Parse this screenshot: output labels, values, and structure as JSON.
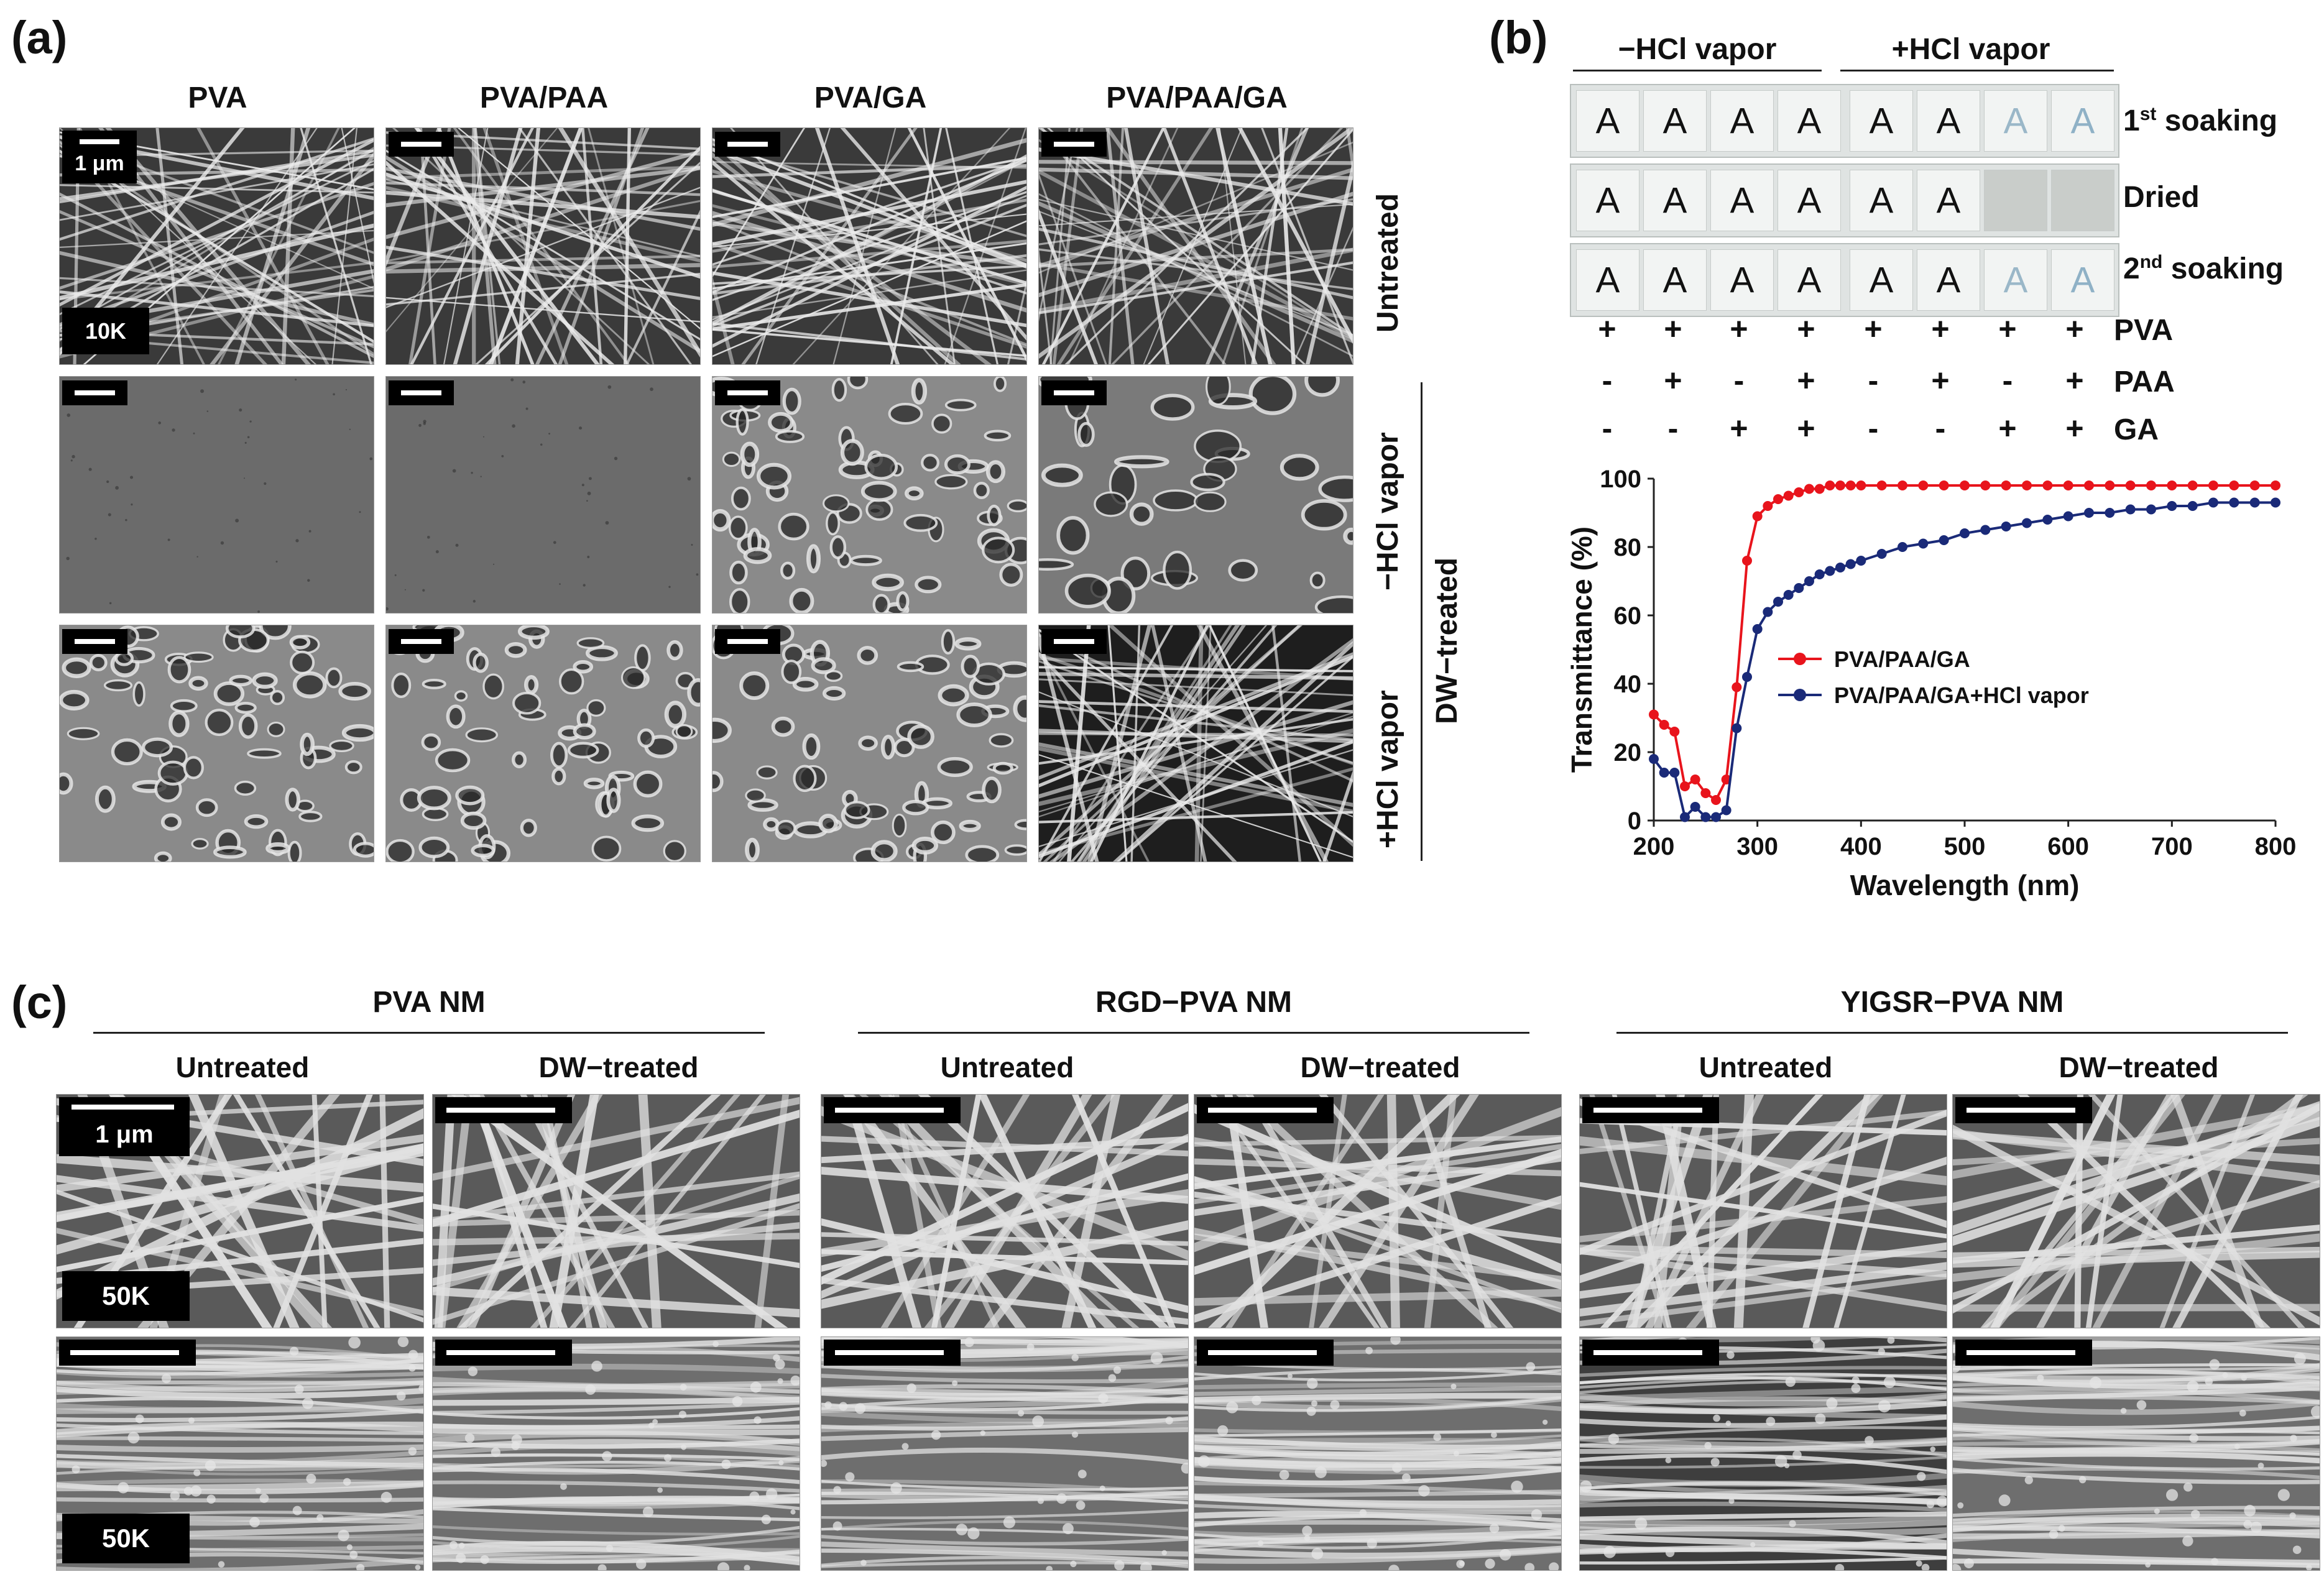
{
  "panels": {
    "a": "(a)",
    "b": "(b)",
    "c": "(c)"
  },
  "panel_a": {
    "columns": [
      "PVA",
      "PVA/PAA",
      "PVA/GA",
      "PVA/PAA/GA"
    ],
    "rows": {
      "untreated": "Untreated",
      "minus_hcl": "−HCl vapor",
      "plus_hcl": "+HCl vapor"
    },
    "group_label": "DW−treated",
    "scale_label": "1 μm",
    "mag_label": "10K"
  },
  "panel_b": {
    "headers": {
      "minus": "−HCl vapor",
      "plus": "+HCl vapor"
    },
    "rows": [
      "1st soaking",
      "Dried",
      "2nd soaking"
    ],
    "row_sup": [
      "st",
      "",
      "nd"
    ],
    "row_base": [
      "1",
      "Dried",
      "2"
    ],
    "row_tail": [
      " soaking",
      "",
      " soaking"
    ],
    "letter": "A",
    "table": [
      {
        "name": "PVA",
        "marks": [
          "+",
          "+",
          "+",
          "+",
          "+",
          "+",
          "+",
          "+"
        ]
      },
      {
        "name": "PAA",
        "marks": [
          "-",
          "+",
          "-",
          "+",
          "-",
          "+",
          "-",
          "+"
        ]
      },
      {
        "name": "GA",
        "marks": [
          "-",
          "-",
          "+",
          "+",
          "-",
          "-",
          "+",
          "+"
        ]
      }
    ]
  },
  "chart_data": {
    "type": "line",
    "xlabel": "Wavelength  (nm)",
    "ylabel": "Transmittance (%)",
    "xlim": [
      200,
      800
    ],
    "ylim": [
      0,
      100
    ],
    "xticks": [
      "200",
      "300",
      "400",
      "500",
      "600",
      "700",
      "800"
    ],
    "yticks": [
      "0",
      "20",
      "40",
      "60",
      "80",
      "100"
    ],
    "legend_position": "center-left",
    "series": [
      {
        "name": "PVA/PAA/GA",
        "color": "#e8141c",
        "x": [
          200,
          210,
          220,
          230,
          240,
          250,
          260,
          270,
          280,
          290,
          300,
          310,
          320,
          330,
          340,
          350,
          360,
          370,
          380,
          390,
          400,
          420,
          440,
          460,
          480,
          500,
          520,
          540,
          560,
          580,
          600,
          620,
          640,
          660,
          680,
          700,
          720,
          740,
          760,
          780,
          800
        ],
        "y": [
          31,
          28,
          26,
          10,
          12,
          8,
          6,
          12,
          39,
          76,
          89,
          92,
          94,
          95,
          96,
          97,
          97,
          98,
          98,
          98,
          98,
          98,
          98,
          98,
          98,
          98,
          98,
          98,
          98,
          98,
          98,
          98,
          98,
          98,
          98,
          98,
          98,
          98,
          98,
          98,
          98
        ]
      },
      {
        "name": "PVA/PAA/GA+HCl vapor",
        "color": "#1a2a78",
        "x": [
          200,
          210,
          220,
          230,
          240,
          250,
          260,
          270,
          280,
          290,
          300,
          310,
          320,
          330,
          340,
          350,
          360,
          370,
          380,
          390,
          400,
          420,
          440,
          460,
          480,
          500,
          520,
          540,
          560,
          580,
          600,
          620,
          640,
          660,
          680,
          700,
          720,
          740,
          760,
          780,
          800
        ],
        "y": [
          18,
          14,
          14,
          1,
          4,
          1,
          1,
          3,
          27,
          42,
          56,
          61,
          64,
          66,
          68,
          70,
          72,
          73,
          74,
          75,
          76,
          78,
          80,
          81,
          82,
          84,
          85,
          86,
          87,
          88,
          89,
          90,
          90,
          91,
          91,
          92,
          92,
          93,
          93,
          93,
          93
        ]
      }
    ]
  },
  "panel_c": {
    "groups": [
      "PVA NM",
      "RGD−PVA NM",
      "YIGSR−PVA NM"
    ],
    "subheaders": [
      "Untreated",
      "DW−treated"
    ],
    "scale_label": "1 μm",
    "mag_label": "50K"
  }
}
